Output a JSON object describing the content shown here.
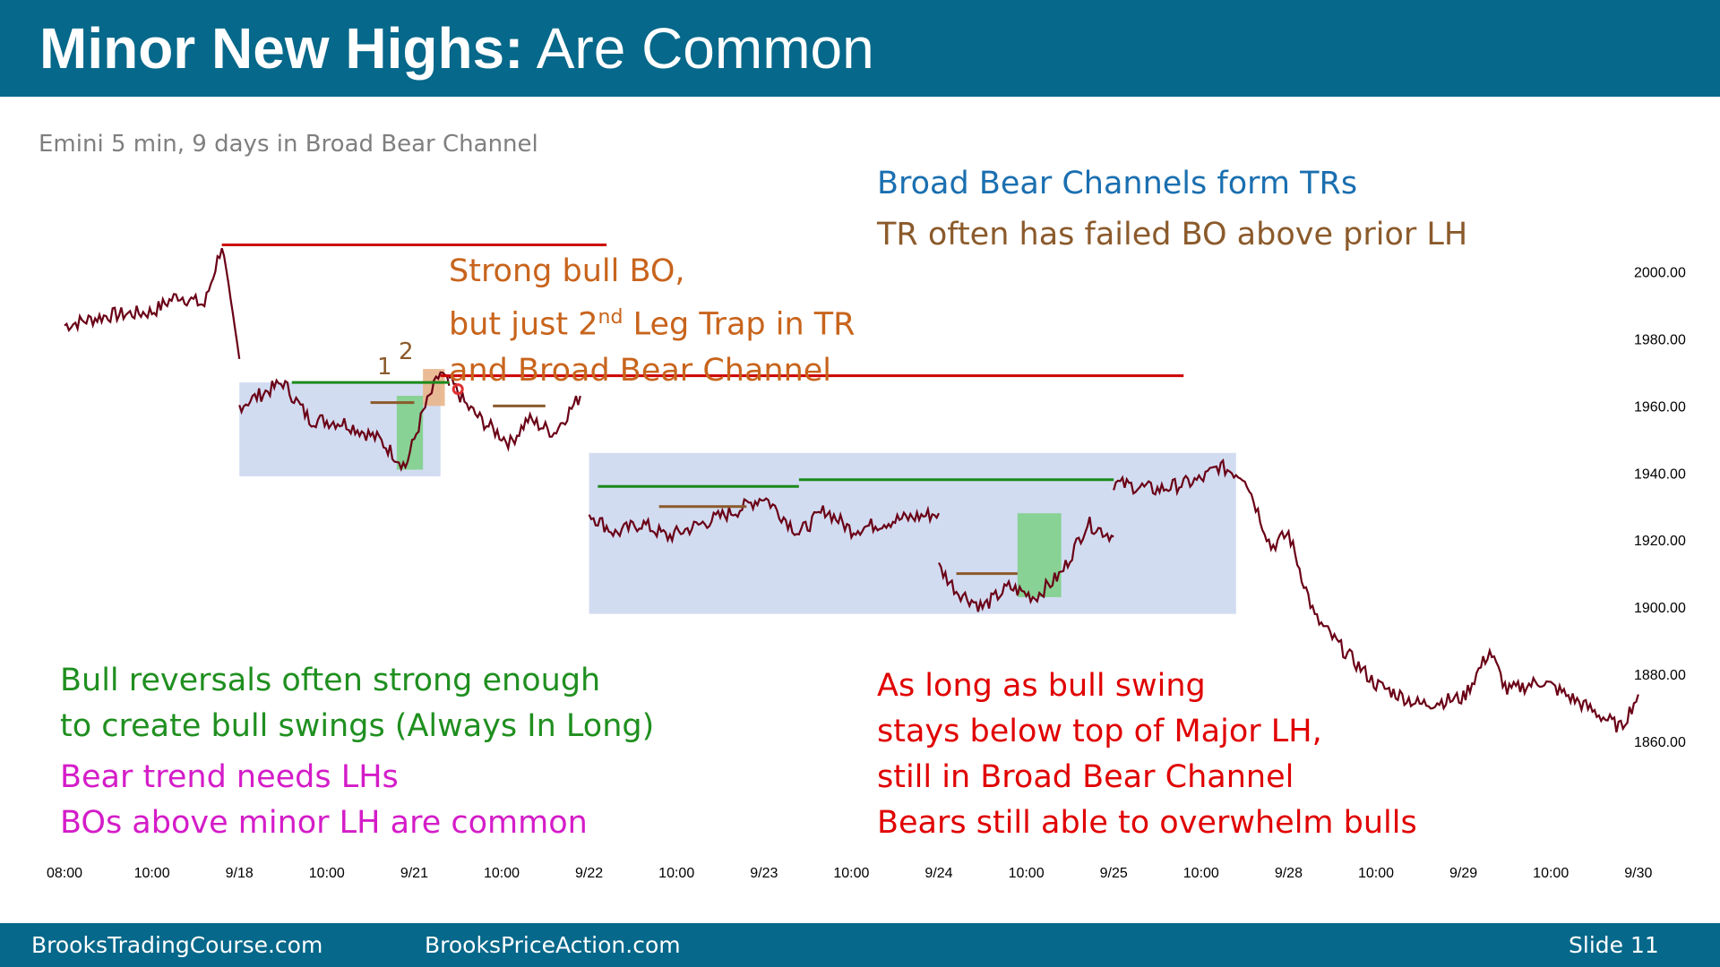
{
  "header": {
    "title_bold": "Minor New Highs:",
    "title_rest": " Are Common",
    "bg_color": "#06688a"
  },
  "subtitle": "Emini 5 min, 9 days in Broad Bear Channel",
  "notes": {
    "top_right_1": "Broad Bear Channels form TRs",
    "top_right_2": "TR often has failed BO above prior LH",
    "strong_bo_1": "Strong bull BO,",
    "strong_bo_2a": "but just 2",
    "strong_bo_2sup": "nd",
    "strong_bo_2b": " Leg Trap in TR",
    "strong_bo_3": "and Broad Bear Channel",
    "label_1": "1",
    "label_2": "2",
    "bull_rev_1": "Bull reversals often strong enough",
    "bull_rev_2": "to create bull swings (Always In Long)",
    "bear_trend_1": "Bear trend needs LHs",
    "bear_trend_2": "BOs above minor LH are common",
    "red_1": "As long as bull swing",
    "red_2": "stays below top of Major LH,",
    "red_3": "still in Broad Bear Channel",
    "red_4": "Bears still able to overwhelm bulls"
  },
  "footer": {
    "left": "BrooksTradingCourse.com",
    "middle": "BrooksPriceAction.com",
    "slide": "Slide  11"
  },
  "chart_data": {
    "type": "line",
    "description_series": "Emini 5 min price",
    "ylim": [
      1848,
      2018
    ],
    "y_ticks": [
      "2000.00",
      "1980.00",
      "1960.00",
      "1940.00",
      "1920.00",
      "1900.00",
      "1880.00",
      "1860.00"
    ],
    "x_ticks": [
      "08:00",
      "10:00",
      "9/18",
      "10:00",
      "9/21",
      "10:00",
      "9/22",
      "10:00",
      "9/23",
      "10:00",
      "9/24",
      "10:00",
      "9/25",
      "10:00",
      "9/28",
      "10:00",
      "9/29",
      "10:00",
      "9/30"
    ],
    "x_tick_index": [
      0,
      1,
      2,
      3,
      4,
      5,
      6,
      7,
      8,
      9,
      10,
      11,
      12,
      13,
      14,
      15,
      16,
      17,
      18
    ],
    "segments": [
      {
        "x": [
          0,
          0.5,
          1,
          1.3,
          1.6,
          1.8,
          1.9,
          2.0
        ],
        "y": [
          1984,
          1987,
          1988,
          1993,
          1990,
          2008,
          1990,
          1974
        ]
      },
      {
        "x": [
          2.0,
          2.5,
          2.8,
          3.2,
          3.6,
          3.9,
          4.1,
          4.3,
          4.4
        ],
        "y": [
          1960,
          1967,
          1956,
          1955,
          1950,
          1942,
          1958,
          1970,
          1966
        ]
      },
      {
        "x": [
          4.4,
          4.6,
          4.8,
          5.1,
          5.3,
          5.6,
          5.9
        ],
        "y": [
          1968,
          1960,
          1955,
          1949,
          1956,
          1952,
          1963
        ]
      },
      {
        "x": [
          6.0,
          6.3,
          6.6,
          6.9,
          7.3,
          7.7,
          8.0,
          8.4,
          8.7,
          9.0,
          9.5,
          10.0
        ],
        "y": [
          1928,
          1922,
          1925,
          1921,
          1925,
          1929,
          1933,
          1922,
          1929,
          1923,
          1926,
          1928
        ]
      },
      {
        "x": [
          10.0,
          10.2,
          10.5,
          10.8,
          11.1,
          11.4,
          11.7,
          12.0
        ],
        "y": [
          1912,
          1905,
          1900,
          1906,
          1903,
          1910,
          1925,
          1921
        ]
      },
      {
        "x": [
          12.0,
          12.5,
          13.0,
          13.2,
          13.5,
          13.8,
          14.0,
          14.3,
          14.6,
          15.0,
          15.5,
          16.0,
          16.3,
          16.5,
          16.9,
          17.3,
          17.8,
          18.0
        ],
        "y": [
          1937,
          1935,
          1938,
          1942,
          1939,
          1918,
          1922,
          1897,
          1888,
          1877,
          1871,
          1873,
          1887,
          1875,
          1878,
          1872,
          1864,
          1874
        ]
      }
    ],
    "shaded_ranges": [
      {
        "x": [
          2.0,
          4.3
        ],
        "y": [
          1939,
          1967
        ],
        "color": "#cdd8f0"
      },
      {
        "x": [
          6.0,
          13.4
        ],
        "y": [
          1898,
          1946
        ],
        "color": "#cdd8f0"
      },
      {
        "x": [
          3.8,
          4.1
        ],
        "y": [
          1941,
          1963
        ],
        "color": "#7ed08a"
      },
      {
        "x": [
          10.9,
          11.4
        ],
        "y": [
          1903,
          1928
        ],
        "color": "#7ed08a"
      },
      {
        "x": [
          4.1,
          4.35
        ],
        "y": [
          1960,
          1971
        ],
        "color": "#e8b48a"
      }
    ],
    "hlines": [
      {
        "x": [
          1.8,
          6.2
        ],
        "y": 2008,
        "color": "#cc0000"
      },
      {
        "x": [
          4.3,
          12.8
        ],
        "y": 1969,
        "color": "#cc0000"
      },
      {
        "x": [
          2.6,
          4.4
        ],
        "y": 1967,
        "color": "#1a8a1a"
      },
      {
        "x": [
          6.1,
          8.4
        ],
        "y": 1936,
        "color": "#1a8a1a"
      },
      {
        "x": [
          8.4,
          12.0
        ],
        "y": 1938,
        "color": "#1a8a1a"
      },
      {
        "x": [
          3.5,
          4.0
        ],
        "y": 1961,
        "color": "#8b5a2b"
      },
      {
        "x": [
          4.9,
          5.5
        ],
        "y": 1960,
        "color": "#8b5a2b"
      },
      {
        "x": [
          6.8,
          7.8
        ],
        "y": 1930,
        "color": "#8b5a2b"
      },
      {
        "x": [
          10.2,
          10.9
        ],
        "y": 1910,
        "color": "#8b5a2b"
      }
    ],
    "marker": {
      "x": 4.5,
      "y": 1965,
      "color": "#e03030"
    },
    "price_color": "#6a0016",
    "grid": false
  }
}
